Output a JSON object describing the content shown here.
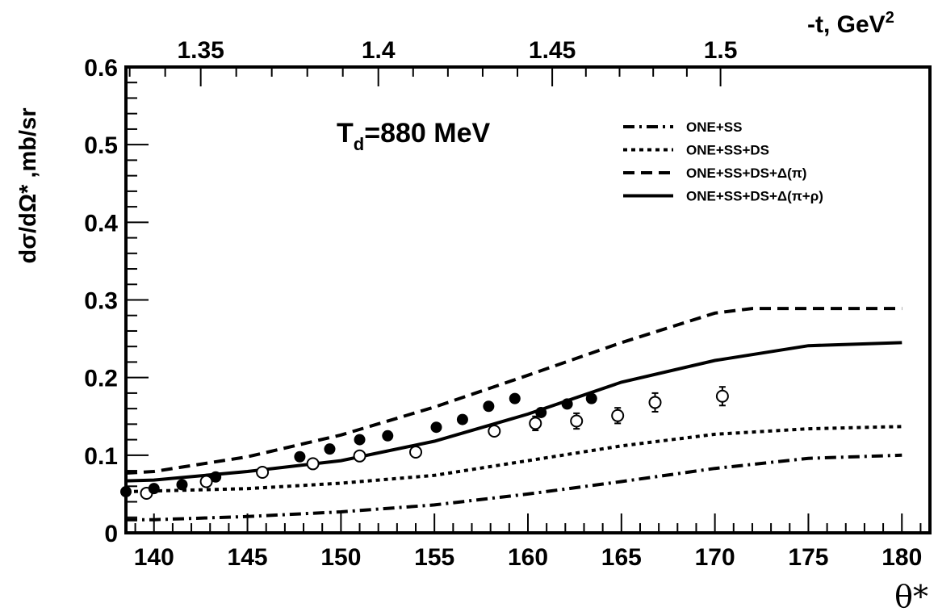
{
  "chart_data": {
    "type": "scatter",
    "annotation": {
      "main": "T",
      "sub": "d",
      "rest": "=880 MeV"
    },
    "xlabel": "θ*",
    "ylabel": "dσ/dΩ* ,mb/sr",
    "top_axis": {
      "label_main": "-t, GeV",
      "label_sup": "2",
      "ticks": [
        {
          "label": "1.35",
          "theta": 142.5
        },
        {
          "label": "1.4",
          "theta": 152.0
        },
        {
          "label": "1.45",
          "theta": 161.3
        },
        {
          "label": "1.5",
          "theta": 170.3
        }
      ]
    },
    "xlim": [
      138.5,
      181.5
    ],
    "ylim": [
      0,
      0.6
    ],
    "xticks": [
      "140",
      "145",
      "150",
      "155",
      "160",
      "165",
      "170",
      "175",
      "180"
    ],
    "yticks": [
      "0",
      "0.1",
      "0.2",
      "0.3",
      "0.4",
      "0.5",
      "0.6"
    ],
    "legend_position": "top-right",
    "series": [
      {
        "name": "ONE+SS",
        "style": "dashdot",
        "x": [
          138.5,
          140,
          145,
          150,
          155,
          160,
          165,
          170,
          175,
          180
        ],
        "y": [
          0.017,
          0.017,
          0.021,
          0.027,
          0.036,
          0.05,
          0.066,
          0.083,
          0.096,
          0.1
        ]
      },
      {
        "name": "ONE+SS+DS",
        "style": "dotted",
        "x": [
          138.5,
          140,
          145,
          150,
          155,
          160,
          165,
          170,
          175,
          180
        ],
        "y": [
          0.053,
          0.054,
          0.057,
          0.064,
          0.074,
          0.093,
          0.112,
          0.127,
          0.134,
          0.137
        ]
      },
      {
        "name": "ONE+SS+DS+Δ(π)",
        "style": "dashed",
        "x": [
          138.5,
          140,
          145,
          150,
          155,
          160,
          165,
          170,
          172,
          175,
          180
        ],
        "y": [
          0.077,
          0.079,
          0.098,
          0.126,
          0.162,
          0.203,
          0.245,
          0.283,
          0.289,
          0.289,
          0.289
        ]
      },
      {
        "name": "ONE+SS+DS+Δ(π+ρ)",
        "style": "solid",
        "x": [
          138.5,
          140,
          145,
          150,
          155,
          160,
          165,
          170,
          175,
          180
        ],
        "y": [
          0.067,
          0.068,
          0.079,
          0.093,
          0.118,
          0.153,
          0.194,
          0.222,
          0.241,
          0.245
        ]
      }
    ],
    "data_filled": {
      "x": [
        138.5,
        140,
        141.5,
        143.3,
        147.8,
        149.4,
        151.0,
        152.5,
        155.1,
        156.5,
        157.9,
        159.3,
        160.7,
        162.1,
        163.4
      ],
      "y": [
        0.053,
        0.057,
        0.062,
        0.072,
        0.098,
        0.108,
        0.12,
        0.125,
        0.136,
        0.146,
        0.163,
        0.173,
        0.155,
        0.166,
        0.173
      ]
    },
    "data_open": {
      "x": [
        139.6,
        142.8,
        145.8,
        148.5,
        151.0,
        154.0,
        158.2,
        160.4,
        162.6,
        164.8,
        166.8,
        170.4
      ],
      "y": [
        0.051,
        0.066,
        0.078,
        0.089,
        0.099,
        0.104,
        0.131,
        0.141,
        0.144,
        0.151,
        0.168,
        0.176
      ],
      "err": [
        0.004,
        0.004,
        0.005,
        0.005,
        0.006,
        0.006,
        0.008,
        0.009,
        0.01,
        0.01,
        0.012,
        0.012
      ]
    }
  }
}
